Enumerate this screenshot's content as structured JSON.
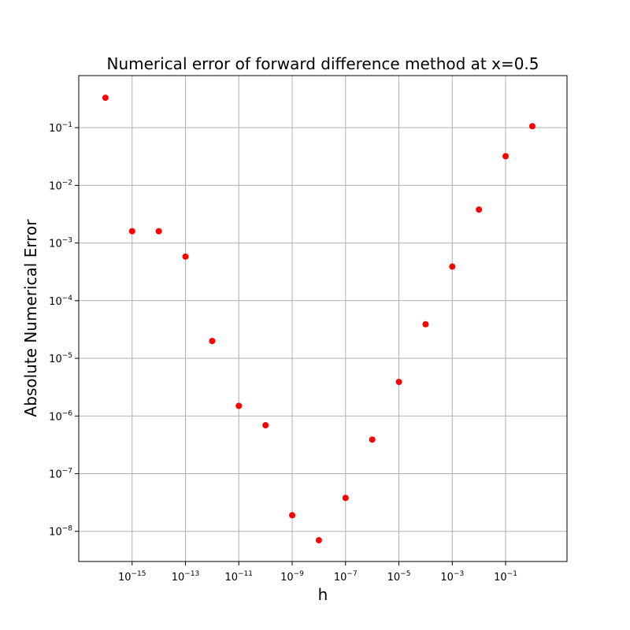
{
  "chart_data": {
    "type": "scatter",
    "title": "Numerical error of forward difference method at x=0.5",
    "xlabel": "h",
    "ylabel": "Absolute Numerical Error",
    "xscale": "log",
    "yscale": "log",
    "xlim": [
      1e-17,
      20
    ],
    "ylim": [
      3e-09,
      0.8
    ],
    "grid": true,
    "marker_color": "#ff0000",
    "x_ticks": [
      {
        "base": "10",
        "exp": "−15",
        "value": 1e-15
      },
      {
        "base": "10",
        "exp": "−13",
        "value": 1e-13
      },
      {
        "base": "10",
        "exp": "−11",
        "value": 1e-11
      },
      {
        "base": "10",
        "exp": "−9",
        "value": 1e-09
      },
      {
        "base": "10",
        "exp": "−7",
        "value": 1e-07
      },
      {
        "base": "10",
        "exp": "−5",
        "value": 1e-05
      },
      {
        "base": "10",
        "exp": "−3",
        "value": 0.001
      },
      {
        "base": "10",
        "exp": "−1",
        "value": 0.1
      }
    ],
    "y_ticks": [
      {
        "base": "10",
        "exp": "−8",
        "value": 1e-08
      },
      {
        "base": "10",
        "exp": "−7",
        "value": 1e-07
      },
      {
        "base": "10",
        "exp": "−6",
        "value": 1e-06
      },
      {
        "base": "10",
        "exp": "−5",
        "value": 1e-05
      },
      {
        "base": "10",
        "exp": "−4",
        "value": 0.0001
      },
      {
        "base": "10",
        "exp": "−3",
        "value": 0.001
      },
      {
        "base": "10",
        "exp": "−2",
        "value": 0.01
      },
      {
        "base": "10",
        "exp": "−1",
        "value": 0.1
      }
    ],
    "points": [
      {
        "x": 1e-16,
        "y": 0.33
      },
      {
        "x": 1e-15,
        "y": 0.0016
      },
      {
        "x": 1e-14,
        "y": 0.0016
      },
      {
        "x": 1e-13,
        "y": 0.00058
      },
      {
        "x": 1e-12,
        "y": 2e-05
      },
      {
        "x": 1e-11,
        "y": 1.5e-06
      },
      {
        "x": 1e-10,
        "y": 6.9e-07
      },
      {
        "x": 1e-09,
        "y": 1.9e-08
      },
      {
        "x": 1e-08,
        "y": 7e-09
      },
      {
        "x": 1e-07,
        "y": 3.8e-08
      },
      {
        "x": 1e-06,
        "y": 3.9e-07
      },
      {
        "x": 1e-05,
        "y": 3.9e-06
      },
      {
        "x": 0.0001,
        "y": 3.9e-05
      },
      {
        "x": 0.001,
        "y": 0.00039
      },
      {
        "x": 0.01,
        "y": 0.0038
      },
      {
        "x": 0.1,
        "y": 0.032
      },
      {
        "x": 1,
        "y": 0.106
      }
    ]
  }
}
